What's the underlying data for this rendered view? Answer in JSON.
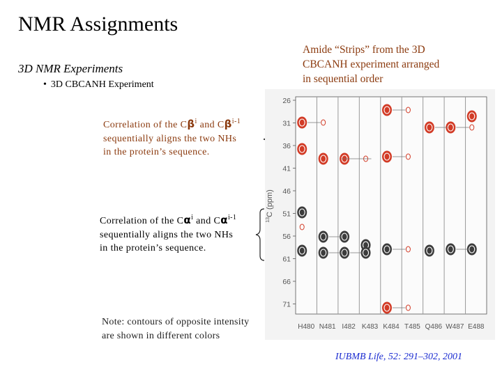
{
  "title": "NMR Assignments",
  "subtitle": "3D NMR Experiments",
  "bullet": {
    "symbol": "•",
    "text": "3D CBCANH Experiment"
  },
  "caption": {
    "lines": [
      "Amide “Strips” from the 3D",
      "CBCANH experiment arranged",
      "in sequential order"
    ]
  },
  "cb_note": {
    "prefix": "Correlation of the C",
    "sym1": "β",
    "sup1": "i",
    "mid": " and C",
    "sym2": "β",
    "sup2": "i-1",
    "line2": "sequentially aligns the two NHs",
    "line3": "in the protein’s sequence."
  },
  "ca_note": {
    "prefix": "Correlation of the C",
    "sym1": "α",
    "sup1": "i",
    "mid": " and C",
    "sym2": "α",
    "sup2": "i-1",
    "line2": "sequentially aligns the two NHs",
    "line3": "in the protein’s sequence."
  },
  "contour_note": {
    "lines": [
      "Note: contours of opposite intensity",
      "are shown in different colors"
    ]
  },
  "citation": "IUBMB Life, 52: 291–302, 2001",
  "spectrum": {
    "y_axis_label": "C (ppm)",
    "y_axis_label_sup": "13",
    "y_ticks": [
      "26",
      "31",
      "36",
      "41",
      "46",
      "51",
      "56",
      "61",
      "66",
      "71"
    ],
    "strips": [
      "H480",
      "N481",
      "I482",
      "K483",
      "K484",
      "T485",
      "Q486",
      "W487",
      "E488"
    ],
    "colors": {
      "positive": "#d23b26",
      "negative": "#3c3c3c",
      "strip_bg": "#f6f6f6",
      "link": "#777777"
    }
  }
}
